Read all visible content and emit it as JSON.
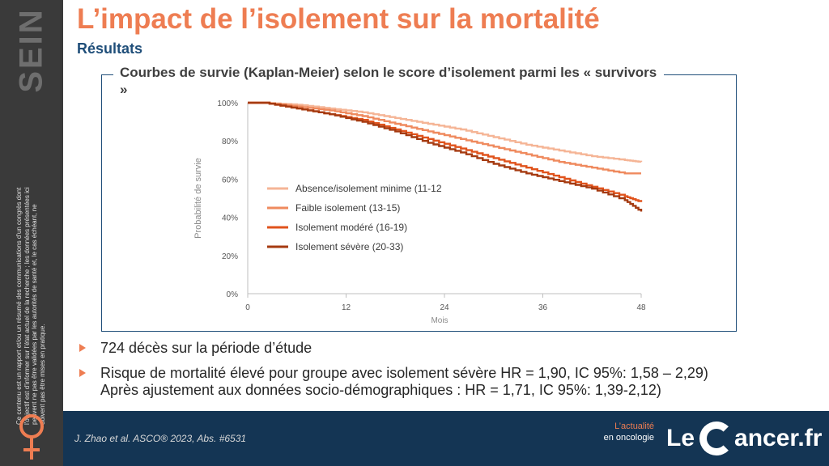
{
  "sidebar": {
    "section_label": "SEIN",
    "disclaimer": "Ce contenu est un rapport et/ou un résumé des communications d'un congrès dont l'objectif est d'informer sur l'état actuel de la recherche ; les données présentées ici peuvent ne pas être validées par les autorités de santé et, le cas échéant, ne doivent pas être mises en pratique."
  },
  "slide": {
    "title": "L’impact de l’isolement sur la mortalité",
    "subtitle": "Résultats",
    "chart_heading": "Courbes de survie (Kaplan-Meier) selon le score d’isolement parmi les « survivors »"
  },
  "chart_data": {
    "type": "line",
    "title": "Courbes de survie (Kaplan-Meier) selon le score d’isolement parmi les « survivors »",
    "xlabel": "Mois",
    "ylabel": "Probabilité de survie",
    "xlim": [
      0,
      48
    ],
    "ylim": [
      0,
      100
    ],
    "x_ticks": [
      0,
      12,
      24,
      36,
      48
    ],
    "y_ticks": [
      "0%",
      "20%",
      "40%",
      "60%",
      "80%",
      "100%"
    ],
    "grid": false,
    "legend_position": "inside-lower-left",
    "series": [
      {
        "name": "Absence/isolement minime (11-12",
        "color": "#f5b596",
        "x": [
          0,
          2,
          6,
          10,
          14,
          18,
          22,
          26,
          30,
          34,
          38,
          42,
          46,
          48
        ],
        "y": [
          100,
          100,
          99,
          97,
          95,
          92,
          89,
          86,
          82,
          78,
          75,
          72,
          70,
          69
        ]
      },
      {
        "name": "Faible isolement (13-15)",
        "color": "#ef8a5e",
        "x": [
          0,
          2,
          6,
          10,
          14,
          18,
          22,
          26,
          30,
          34,
          38,
          42,
          46,
          48
        ],
        "y": [
          100,
          100,
          98,
          96,
          93,
          89,
          85,
          81,
          77,
          73,
          69,
          66,
          63,
          63
        ]
      },
      {
        "name": "Isolement modéré (16-19)",
        "color": "#e0531c",
        "x": [
          0,
          2,
          6,
          10,
          14,
          18,
          22,
          26,
          30,
          34,
          38,
          42,
          46,
          48
        ],
        "y": [
          100,
          100,
          97,
          94,
          91,
          86,
          81,
          76,
          71,
          66,
          61,
          56,
          51,
          48
        ]
      },
      {
        "name": "Isolement sévère (20-33)",
        "color": "#a53a10",
        "x": [
          0,
          2,
          6,
          10,
          14,
          18,
          22,
          26,
          30,
          34,
          38,
          42,
          46,
          48
        ],
        "y": [
          100,
          100,
          97,
          94,
          90,
          85,
          79,
          74,
          68,
          63,
          59,
          55,
          49,
          43
        ]
      }
    ]
  },
  "bullets": [
    {
      "text": "724 décès sur la période d’étude"
    },
    {
      "text": "Risque de mortalité élevé pour groupe avec isolement sévère HR = 1,90, IC 95%: 1,58 – 2,29)",
      "continuation": "Après ajustement aux données socio-démographiques : HR = 1,71, IC 95%: 1,39-2,12)"
    }
  ],
  "footer": {
    "reference": "J. Zhao et al. ASCO® 2023, Abs. #6531",
    "tagline_line1": "L’actualité",
    "tagline_line2": "en oncologie",
    "brand_le": "Le",
    "brand_rest": "ancer.fr"
  },
  "colors": {
    "accent": "#ee7d52",
    "navy": "#1f4e79",
    "footer_bg": "#143554",
    "sidebar_bg": "#3a3a3a"
  }
}
